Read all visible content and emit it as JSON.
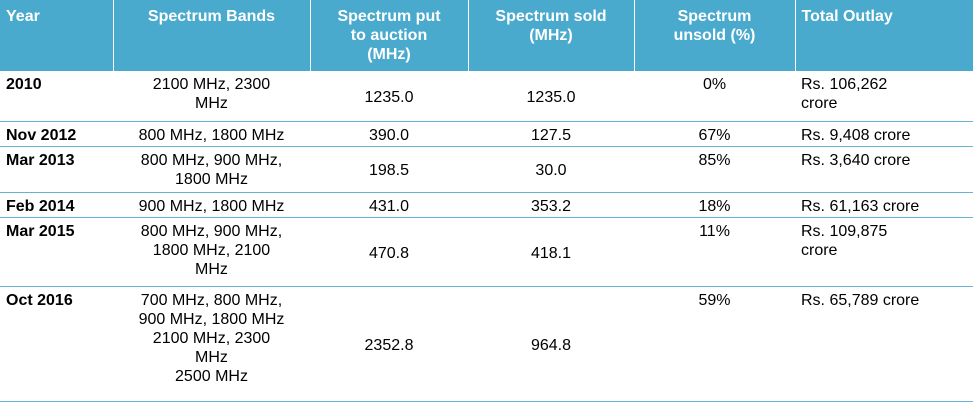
{
  "table": {
    "headers": [
      "Year",
      "Spectrum Bands",
      "Spectrum put to auction (MHz)",
      "Spectrum sold (MHz)",
      "Spectrum unsold (%)",
      "Total Outlay"
    ],
    "header_lines": [
      [
        "Year"
      ],
      [
        "Spectrum Bands"
      ],
      [
        "Spectrum put",
        "to auction",
        "(MHz)"
      ],
      [
        "Spectrum sold",
        "(MHz)"
      ],
      [
        "Spectrum",
        "unsold (%)"
      ],
      [
        "Total Outlay"
      ]
    ],
    "rows": [
      {
        "year": "2010",
        "bands_lines": [
          "2100 MHz, 2300",
          "MHz"
        ],
        "put_to_auction": "1235.0",
        "sold": "1235.0",
        "unsold": "0%",
        "outlay_lines": [
          "Rs. 106,262",
          "crore"
        ]
      },
      {
        "year": "Nov 2012",
        "bands_lines": [
          "800 MHz, 1800 MHz"
        ],
        "put_to_auction": "390.0",
        "sold": "127.5",
        "unsold": "67%",
        "outlay_lines": [
          "Rs. 9,408 crore"
        ]
      },
      {
        "year": "Mar 2013",
        "bands_lines": [
          "800 MHz, 900 MHz,",
          "1800 MHz"
        ],
        "put_to_auction": "198.5",
        "sold": "30.0",
        "unsold": "85%",
        "outlay_lines": [
          "Rs. 3,640 crore"
        ]
      },
      {
        "year": "Feb 2014",
        "bands_lines": [
          "900 MHz, 1800 MHz"
        ],
        "put_to_auction": "431.0",
        "sold": "353.2",
        "unsold": "18%",
        "outlay_lines": [
          "Rs. 61,163 crore"
        ]
      },
      {
        "year": "Mar 2015",
        "bands_lines": [
          "800 MHz, 900 MHz,",
          "1800 MHz, 2100",
          "MHz"
        ],
        "put_to_auction": "470.8",
        "sold": "418.1",
        "unsold": "11%",
        "outlay_lines": [
          "Rs. 109,875",
          "crore"
        ]
      },
      {
        "year": "Oct 2016",
        "bands_lines": [
          "700 MHz, 800 MHz,",
          "900 MHz, 1800 MHz",
          "2100 MHz, 2300",
          "MHz",
          "2500 MHz"
        ],
        "put_to_auction": "2352.8",
        "sold": "964.8",
        "unsold": "59%",
        "outlay_lines": [
          "Rs. 65,789 crore"
        ]
      }
    ]
  },
  "colors": {
    "header_background": "#4aaacd",
    "header_text": "#ffffff",
    "row_divider": "#66b3d3"
  }
}
